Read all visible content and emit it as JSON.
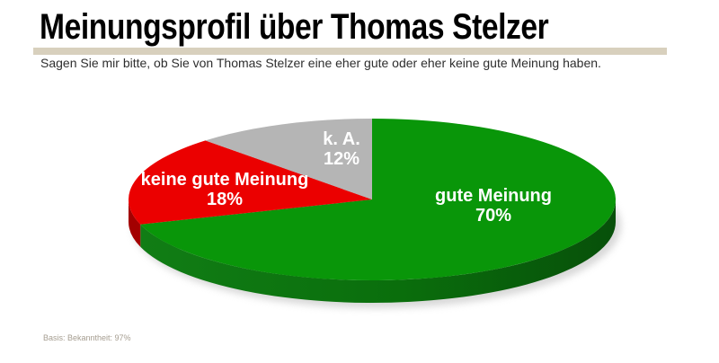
{
  "header": {
    "title": "Meinungsprofil über Thomas Stelzer",
    "subtitle": "Sagen Sie mir bitte, ob Sie von Thomas Stelzer eine eher gute oder eher keine gute Meinung haben."
  },
  "footer": {
    "basis": "Basis: Bekanntheit: 97%"
  },
  "colors": {
    "title_text": "#000000",
    "accent_bar": "#d8d0bd",
    "subtitle_text": "#2e2e2e",
    "footnote_text": "#a59d90",
    "green_wall_stops": [
      "#117d15",
      "#0a6e0c",
      "#07500a"
    ],
    "shadow": "#c8c8c8"
  },
  "chart_data": {
    "type": "pie",
    "style": "3d",
    "title": "Meinungsprofil über Thomas Stelzer",
    "start_angle_deg": 0,
    "direction": "clockwise",
    "slices": [
      {
        "label": "gute Meinung",
        "value": 70,
        "pct_label": "70%",
        "color": "#099609",
        "wall_color": "gradient"
      },
      {
        "label": "keine gute Meinung",
        "value": 18,
        "pct_label": "18%",
        "color": "#eb0000",
        "wall_color": "#a30000"
      },
      {
        "label": "k. A.",
        "value": 12,
        "pct_label": "12%",
        "color": "#b5b5b5",
        "wall_color": "#8f8f8f"
      }
    ]
  }
}
